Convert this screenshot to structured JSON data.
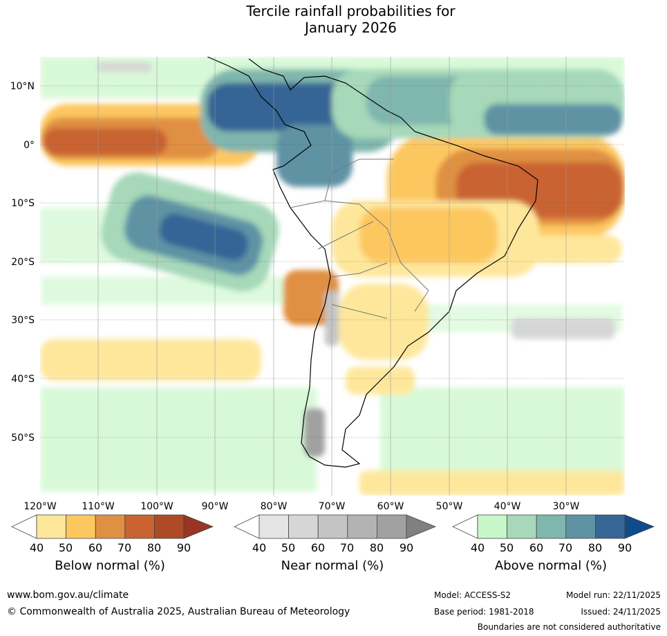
{
  "title_line1": "Tercile rainfall probabilities for",
  "title_line2": "January 2026",
  "map": {
    "lat_labels": [
      "10°N",
      "0°",
      "10°S",
      "20°S",
      "30°S",
      "40°S",
      "50°S"
    ],
    "lon_labels": [
      "120°W",
      "110°W",
      "100°W",
      "90°W",
      "80°W",
      "70°W",
      "60°W",
      "50°W",
      "40°W",
      "30°W"
    ]
  },
  "colorbars": [
    {
      "label": "Below normal (%)",
      "ticks": [
        "40",
        "50",
        "60",
        "70",
        "80",
        "90"
      ],
      "colors": [
        "#ffffff",
        "#fee79b",
        "#fdc760",
        "#e09043",
        "#c96330",
        "#ae4a26",
        "#983622"
      ]
    },
    {
      "label": "Near normal (%)",
      "ticks": [
        "40",
        "50",
        "60",
        "70",
        "80",
        "90"
      ],
      "colors": [
        "#ffffff",
        "#e4e4e4",
        "#d6d6d6",
        "#c4c4c4",
        "#b3b3b3",
        "#a1a1a1",
        "#808080"
      ]
    },
    {
      "label": "Above normal (%)",
      "ticks": [
        "40",
        "50",
        "60",
        "70",
        "80",
        "90"
      ],
      "colors": [
        "#ffffff",
        "#c8f6c8",
        "#a6d8b9",
        "#7fb6ad",
        "#5f93a4",
        "#366596",
        "#0f4b8a"
      ]
    }
  ],
  "footer": {
    "website": "www.bom.gov.au/climate",
    "copyright": "© Commonwealth of Australia 2025, Australian Bureau of Meteorology",
    "model": "Model: ACCESS-S2",
    "base_period": "Base period: 1981-2018",
    "model_run": "Model run: 22/11/2025",
    "issued": "Issued: 24/11/2025",
    "disclaimer": "Boundaries are not considered authoritative"
  }
}
